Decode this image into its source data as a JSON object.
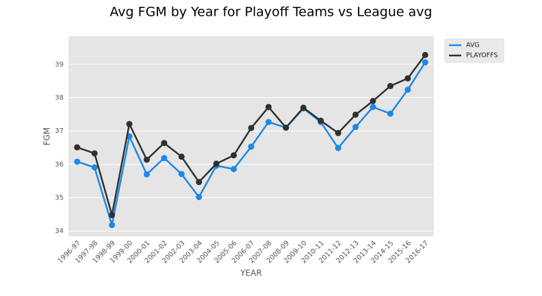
{
  "chart_data": {
    "type": "line",
    "title": "Avg FGM by Year for Playoff Teams vs League avg",
    "x_label": "YEAR",
    "y_label": "FGM",
    "categories": [
      "1996-97",
      "1997-98",
      "1998-99",
      "1999-00",
      "2000-01",
      "2001-02",
      "2002-03",
      "2003-04",
      "2004-05",
      "2005-06",
      "2006-07",
      "2007-08",
      "2008-09",
      "2009-10",
      "2010-11",
      "2011-12",
      "2012-13",
      "2013-14",
      "2014-15",
      "2015-16",
      "2016-17"
    ],
    "series": [
      {
        "name": "AVG",
        "color": "#1e88e5",
        "values": [
          36.08,
          35.91,
          34.18,
          36.84,
          35.7,
          36.19,
          35.71,
          35.02,
          35.96,
          35.86,
          36.53,
          37.27,
          37.1,
          37.68,
          37.27,
          36.49,
          37.12,
          37.72,
          37.52,
          38.24,
          39.06
        ]
      },
      {
        "name": "PLAYOFFS",
        "color": "#2f3030",
        "values": [
          36.51,
          36.33,
          34.48,
          37.21,
          36.14,
          36.64,
          36.23,
          35.47,
          36.02,
          36.27,
          37.09,
          37.72,
          37.1,
          37.7,
          37.31,
          36.94,
          37.49,
          37.9,
          38.35,
          38.58,
          39.28
        ]
      }
    ],
    "ylim": [
      33.84,
      39.84
    ],
    "yticks": [
      34,
      35,
      36,
      37,
      38,
      39
    ],
    "grid": true,
    "legend": "outside-upper-right"
  }
}
